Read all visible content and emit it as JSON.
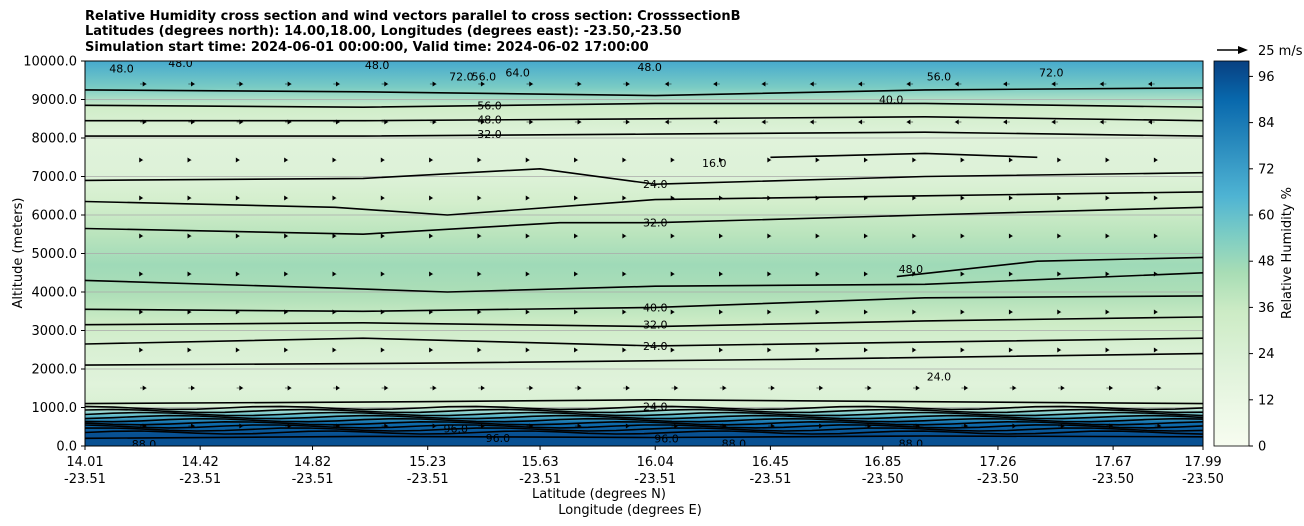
{
  "chart_data": {
    "type": "contour",
    "title_lines": [
      "Relative Humidity cross section and wind vectors parallel to cross section: CrosssectionB",
      "Latitudes (degrees north): 14.00,18.00, Longitudes (degrees east): -23.50,-23.50",
      "Simulation start time: 2024-06-01 00:00:00, Valid time: 2024-06-02 17:00:00"
    ],
    "ylabel": "Altitude (meters)",
    "xlabel_lat": "Latitude (degrees N)",
    "xlabel_lon": "Longitude (degrees E)",
    "ylim": [
      0,
      10000
    ],
    "y_ticks": [
      "0.0",
      "1000.0",
      "2000.0",
      "3000.0",
      "4000.0",
      "5000.0",
      "6000.0",
      "7000.0",
      "8000.0",
      "9000.0",
      "10000.0"
    ],
    "y_tick_values": [
      0,
      1000,
      2000,
      3000,
      4000,
      5000,
      6000,
      7000,
      8000,
      9000,
      10000
    ],
    "x_tick_lat": [
      "14.01",
      "14.42",
      "14.82",
      "15.23",
      "15.63",
      "16.04",
      "16.45",
      "16.85",
      "17.26",
      "17.67",
      "17.99"
    ],
    "x_tick_lon": [
      "-23.51",
      "-23.51",
      "-23.51",
      "-23.51",
      "-23.51",
      "-23.51",
      "-23.51",
      "-23.50",
      "-23.50",
      "-23.50",
      "-23.50"
    ],
    "colorbar_label": "Relative Humidity %",
    "colorbar_ticks": [
      "0",
      "12",
      "24",
      "36",
      "48",
      "60",
      "72",
      "84",
      "96"
    ],
    "colorbar_range": [
      0,
      100
    ],
    "quiver_key": "25 m/s",
    "rh_profile": [
      {
        "alt": 0,
        "rh": 96
      },
      {
        "alt": 300,
        "rh": 96
      },
      {
        "alt": 600,
        "rh": 88
      },
      {
        "alt": 800,
        "rh": 60
      },
      {
        "alt": 1000,
        "rh": 26
      },
      {
        "alt": 1600,
        "rh": 20
      },
      {
        "alt": 2500,
        "rh": 25
      },
      {
        "alt": 3200,
        "rh": 34
      },
      {
        "alt": 4000,
        "rh": 44
      },
      {
        "alt": 4700,
        "rh": 47
      },
      {
        "alt": 5500,
        "rh": 40
      },
      {
        "alt": 6300,
        "rh": 30
      },
      {
        "alt": 7000,
        "rh": 22
      },
      {
        "alt": 8000,
        "rh": 20
      },
      {
        "alt": 8800,
        "rh": 32
      },
      {
        "alt": 9300,
        "rh": 55
      },
      {
        "alt": 10000,
        "rh": 68
      }
    ],
    "contour_lines": [
      {
        "level": "24.0",
        "x": [
          14.01,
          15.2,
          16.5,
          17.99
        ],
        "alt": [
          2100,
          2150,
          2250,
          2400
        ]
      },
      {
        "level": "24.0",
        "x": [
          14.01,
          15.0,
          16.04,
          17.0,
          17.99
        ],
        "alt": [
          2650,
          2800,
          2600,
          2700,
          2800
        ]
      },
      {
        "level": "32.0",
        "x": [
          14.01,
          15.0,
          16.04,
          17.0,
          17.99
        ],
        "alt": [
          3150,
          3200,
          3100,
          3250,
          3350
        ]
      },
      {
        "level": "40.0",
        "x": [
          14.01,
          15.0,
          16.04,
          17.0,
          17.99
        ],
        "alt": [
          3550,
          3500,
          3600,
          3850,
          3900
        ]
      },
      {
        "level": "40.0",
        "x": [
          14.01,
          14.9,
          15.3,
          16.04,
          17.0,
          17.99
        ],
        "alt": [
          4300,
          4100,
          4000,
          4150,
          4200,
          4500
        ]
      },
      {
        "level": "48.0",
        "x": [
          16.9,
          17.4,
          17.99
        ],
        "alt": [
          4400,
          4800,
          4900
        ]
      },
      {
        "level": "32.0",
        "x": [
          14.01,
          15.0,
          15.7,
          16.04,
          17.0,
          17.99
        ],
        "alt": [
          5650,
          5500,
          5800,
          5800,
          6000,
          6200
        ]
      },
      {
        "level": "32.0",
        "x": [
          14.01,
          14.9,
          15.3,
          16.04,
          17.0,
          17.99
        ],
        "alt": [
          6350,
          6200,
          6000,
          6400,
          6500,
          6600
        ]
      },
      {
        "level": "24.0",
        "x": [
          14.01,
          15.0,
          15.63,
          16.04,
          17.0,
          17.99
        ],
        "alt": [
          6900,
          6950,
          7200,
          6800,
          7000,
          7100
        ]
      },
      {
        "level": "16.0",
        "x": [
          16.45,
          17.0,
          17.4
        ],
        "alt": [
          7500,
          7600,
          7500
        ]
      },
      {
        "level": "32.0",
        "x": [
          14.01,
          15.0,
          16.04,
          17.0,
          17.99
        ],
        "alt": [
          8050,
          8050,
          8100,
          8150,
          8050
        ]
      },
      {
        "level": "48.0",
        "x": [
          14.01,
          15.0,
          16.04,
          17.0,
          17.99
        ],
        "alt": [
          8450,
          8450,
          8500,
          8550,
          8450
        ]
      },
      {
        "level": "56.0",
        "x": [
          14.01,
          15.0,
          16.04,
          17.0,
          17.99
        ],
        "alt": [
          8850,
          8800,
          8900,
          8900,
          8800
        ]
      },
      {
        "level": "40.0",
        "x": [
          14.01,
          15.0,
          16.04,
          17.0,
          17.99
        ],
        "alt": [
          9250,
          9200,
          9100,
          9250,
          9300
        ]
      },
      {
        "level": "24.0",
        "x": [
          14.01,
          15.2,
          16.04,
          17.0,
          17.99
        ],
        "alt": [
          1100,
          1150,
          1200,
          1150,
          1100
        ]
      },
      {
        "level": "96.0",
        "x": [
          14.01,
          15.0,
          16.04,
          17.0,
          17.99
        ],
        "alt": [
          200,
          250,
          220,
          260,
          240
        ]
      }
    ],
    "contour_labels": [
      {
        "text": "48.0",
        "x": 14.14,
        "alt": 9800
      },
      {
        "text": "48.0",
        "x": 14.35,
        "alt": 9950
      },
      {
        "text": "48.0",
        "x": 15.05,
        "alt": 9900
      },
      {
        "text": "72.0",
        "x": 15.35,
        "alt": 9600
      },
      {
        "text": "56.0",
        "x": 15.43,
        "alt": 9600
      },
      {
        "text": "64.0",
        "x": 15.55,
        "alt": 9700
      },
      {
        "text": "48.0",
        "x": 16.02,
        "alt": 9850
      },
      {
        "text": "40.0",
        "x": 16.88,
        "alt": 9000
      },
      {
        "text": "56.0",
        "x": 17.05,
        "alt": 9600
      },
      {
        "text": "72.0",
        "x": 17.45,
        "alt": 9700
      },
      {
        "text": "56.0",
        "x": 15.45,
        "alt": 8850
      },
      {
        "text": "48.0",
        "x": 15.45,
        "alt": 8480
      },
      {
        "text": "32.0",
        "x": 15.45,
        "alt": 8100
      },
      {
        "text": "16.0",
        "x": 16.25,
        "alt": 7350
      },
      {
        "text": "24.0",
        "x": 16.04,
        "alt": 6800
      },
      {
        "text": "32.0",
        "x": 16.04,
        "alt": 5800
      },
      {
        "text": "48.0",
        "x": 16.95,
        "alt": 4600
      },
      {
        "text": "40.0",
        "x": 16.04,
        "alt": 3600
      },
      {
        "text": "32.0",
        "x": 16.04,
        "alt": 3150
      },
      {
        "text": "24.0",
        "x": 16.04,
        "alt": 2600
      },
      {
        "text": "24.0",
        "x": 17.05,
        "alt": 1800
      },
      {
        "text": "24.0",
        "x": 16.04,
        "alt": 1030
      },
      {
        "text": "96.0",
        "x": 15.33,
        "alt": 450
      },
      {
        "text": "96.0",
        "x": 15.48,
        "alt": 210
      },
      {
        "text": "88.0",
        "x": 16.32,
        "alt": 60
      },
      {
        "text": "96.0",
        "x": 16.08,
        "alt": 200
      },
      {
        "text": "88.0",
        "x": 16.95,
        "alt": 60
      },
      {
        "text": "88.0",
        "x": 14.22,
        "alt": 50
      }
    ]
  }
}
